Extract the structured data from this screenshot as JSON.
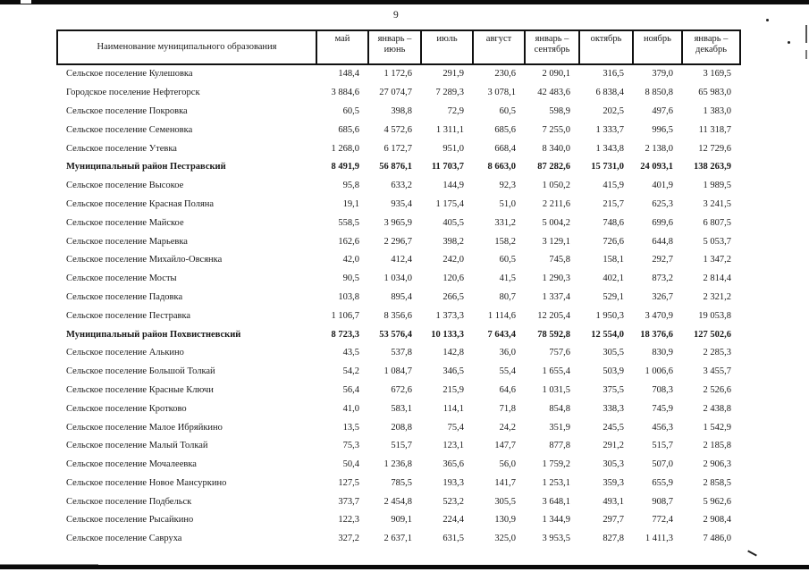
{
  "page": {
    "number": "9"
  },
  "table": {
    "name_header": "Наименование муниципального образования",
    "columns": [
      "май",
      "январь –\nиюнь",
      "июль",
      "август",
      "январь –\nсентябрь",
      "октябрь",
      "ноябрь",
      "январь –\nдекабрь"
    ],
    "rows": [
      {
        "name": "Сельское поселение Кулешовка",
        "bold": false,
        "values": [
          "148,4",
          "1 172,6",
          "291,9",
          "230,6",
          "2 090,1",
          "316,5",
          "379,0",
          "3 169,5"
        ]
      },
      {
        "name": "Городское поселение Нефтегорск",
        "bold": false,
        "values": [
          "3 884,6",
          "27 074,7",
          "7 289,3",
          "3 078,1",
          "42 483,6",
          "6 838,4",
          "8 850,8",
          "65 983,0"
        ]
      },
      {
        "name": "Сельское поселение Покровка",
        "bold": false,
        "values": [
          "60,5",
          "398,8",
          "72,9",
          "60,5",
          "598,9",
          "202,5",
          "497,6",
          "1 383,0"
        ]
      },
      {
        "name": "Сельское поселение Семеновка",
        "bold": false,
        "values": [
          "685,6",
          "4 572,6",
          "1 311,1",
          "685,6",
          "7 255,0",
          "1 333,7",
          "996,5",
          "11 318,7"
        ]
      },
      {
        "name": "Сельское поселение Утевка",
        "bold": false,
        "values": [
          "1 268,0",
          "6 172,7",
          "951,0",
          "668,4",
          "8 340,0",
          "1 343,8",
          "2 138,0",
          "12 729,6"
        ]
      },
      {
        "name": "Муниципальный район Пестравский",
        "bold": true,
        "values": [
          "8 491,9",
          "56 876,1",
          "11 703,7",
          "8 663,0",
          "87 282,6",
          "15 731,0",
          "24 093,1",
          "138 263,9"
        ]
      },
      {
        "name": "Сельское поселение Высокое",
        "bold": false,
        "values": [
          "95,8",
          "633,2",
          "144,9",
          "92,3",
          "1 050,2",
          "415,9",
          "401,9",
          "1 989,5"
        ]
      },
      {
        "name": "Сельское поселение Красная Поляна",
        "bold": false,
        "values": [
          "19,1",
          "935,4",
          "1 175,4",
          "51,0",
          "2 211,6",
          "215,7",
          "625,3",
          "3 241,5"
        ]
      },
      {
        "name": "Сельское поселение Майское",
        "bold": false,
        "values": [
          "558,5",
          "3 965,9",
          "405,5",
          "331,2",
          "5 004,2",
          "748,6",
          "699,6",
          "6 807,5"
        ]
      },
      {
        "name": "Сельское поселение Марьевка",
        "bold": false,
        "values": [
          "162,6",
          "2 296,7",
          "398,2",
          "158,2",
          "3 129,1",
          "726,6",
          "644,8",
          "5 053,7"
        ]
      },
      {
        "name": "Сельское поселение Михайло-Овсянка",
        "bold": false,
        "values": [
          "42,0",
          "412,4",
          "242,0",
          "60,5",
          "745,8",
          "158,1",
          "292,7",
          "1 347,2"
        ]
      },
      {
        "name": "Сельское поселение Мосты",
        "bold": false,
        "values": [
          "90,5",
          "1 034,0",
          "120,6",
          "41,5",
          "1 290,3",
          "402,1",
          "873,2",
          "2 814,4"
        ]
      },
      {
        "name": "Сельское поселение Падовка",
        "bold": false,
        "values": [
          "103,8",
          "895,4",
          "266,5",
          "80,7",
          "1 337,4",
          "529,1",
          "326,7",
          "2 321,2"
        ]
      },
      {
        "name": "Сельское поселение Пестравка",
        "bold": false,
        "values": [
          "1 106,7",
          "8 356,6",
          "1 373,3",
          "1 114,6",
          "12 205,4",
          "1 950,3",
          "3 470,9",
          "19 053,8"
        ]
      },
      {
        "name": "Муниципальный район Похвистневский",
        "bold": true,
        "values": [
          "8 723,3",
          "53 576,4",
          "10 133,3",
          "7 643,4",
          "78 592,8",
          "12 554,0",
          "18 376,6",
          "127 502,6"
        ]
      },
      {
        "name": "Сельское поселение Алькино",
        "bold": false,
        "values": [
          "43,5",
          "537,8",
          "142,8",
          "36,0",
          "757,6",
          "305,5",
          "830,9",
          "2 285,3"
        ]
      },
      {
        "name": "Сельское поселение Большой Толкай",
        "bold": false,
        "values": [
          "54,2",
          "1 084,7",
          "346,5",
          "55,4",
          "1 655,4",
          "503,9",
          "1 006,6",
          "3 455,7"
        ]
      },
      {
        "name": "Сельское поселение Красные Ключи",
        "bold": false,
        "values": [
          "56,4",
          "672,6",
          "215,9",
          "64,6",
          "1 031,5",
          "375,5",
          "708,3",
          "2 526,6"
        ]
      },
      {
        "name": "Сельское поселение Кротково",
        "bold": false,
        "values": [
          "41,0",
          "583,1",
          "114,1",
          "71,8",
          "854,8",
          "338,3",
          "745,9",
          "2 438,8"
        ]
      },
      {
        "name": "Сельское поселение Малое Ибряйкино",
        "bold": false,
        "values": [
          "13,5",
          "208,8",
          "75,4",
          "24,2",
          "351,9",
          "245,5",
          "456,3",
          "1 542,9"
        ]
      },
      {
        "name": "Сельское поселение Малый Толкай",
        "bold": false,
        "values": [
          "75,3",
          "515,7",
          "123,1",
          "147,7",
          "877,8",
          "291,2",
          "515,7",
          "2 185,8"
        ]
      },
      {
        "name": "Сельское поселение Мочалеевка",
        "bold": false,
        "values": [
          "50,4",
          "1 236,8",
          "365,6",
          "56,0",
          "1 759,2",
          "305,3",
          "507,0",
          "2 906,3"
        ]
      },
      {
        "name": "Сельское поселение Новое Мансуркино",
        "bold": false,
        "values": [
          "127,5",
          "785,5",
          "193,3",
          "141,7",
          "1 253,1",
          "359,3",
          "655,9",
          "2 858,5"
        ]
      },
      {
        "name": "Сельское поселение Подбельск",
        "bold": false,
        "values": [
          "373,7",
          "2 454,8",
          "523,2",
          "305,5",
          "3 648,1",
          "493,1",
          "908,7",
          "5 962,6"
        ]
      },
      {
        "name": "Сельское поселение Рысайкино",
        "bold": false,
        "values": [
          "122,3",
          "909,1",
          "224,4",
          "130,9",
          "1 344,9",
          "297,7",
          "772,4",
          "2 908,4"
        ]
      },
      {
        "name": "Сельское поселение Савруха",
        "bold": false,
        "values": [
          "327,2",
          "2 637,1",
          "631,5",
          "325,0",
          "3 953,5",
          "827,8",
          "1 411,3",
          "7 486,0"
        ]
      }
    ]
  }
}
